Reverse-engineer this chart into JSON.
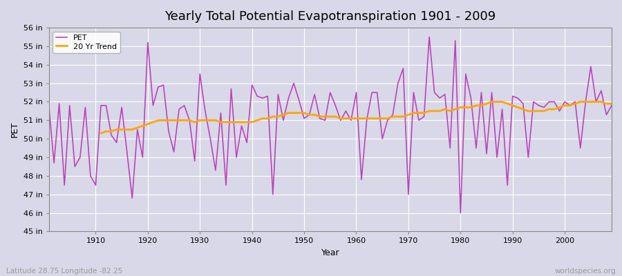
{
  "title": "Yearly Total Potential Evapotranspiration 1901 - 2009",
  "xlabel": "Year",
  "ylabel": "PET",
  "background_color": "#d8d8e8",
  "plot_bg_color": "#d8d8e8",
  "pet_color": "#bb44bb",
  "trend_color": "#ffa500",
  "years": [
    1901,
    1902,
    1903,
    1904,
    1905,
    1906,
    1907,
    1908,
    1909,
    1910,
    1911,
    1912,
    1913,
    1914,
    1915,
    1916,
    1917,
    1918,
    1919,
    1920,
    1921,
    1922,
    1923,
    1924,
    1925,
    1926,
    1927,
    1928,
    1929,
    1930,
    1931,
    1932,
    1933,
    1934,
    1935,
    1936,
    1937,
    1938,
    1939,
    1940,
    1941,
    1942,
    1943,
    1944,
    1945,
    1946,
    1947,
    1948,
    1949,
    1950,
    1951,
    1952,
    1953,
    1954,
    1955,
    1956,
    1957,
    1958,
    1959,
    1960,
    1961,
    1962,
    1963,
    1964,
    1965,
    1966,
    1967,
    1968,
    1969,
    1970,
    1971,
    1972,
    1973,
    1974,
    1975,
    1976,
    1977,
    1978,
    1979,
    1980,
    1981,
    1982,
    1983,
    1984,
    1985,
    1986,
    1987,
    1988,
    1989,
    1990,
    1991,
    1992,
    1993,
    1994,
    1995,
    1996,
    1997,
    1998,
    1999,
    2000,
    2001,
    2002,
    2003,
    2004,
    2005,
    2006,
    2007,
    2008,
    2009
  ],
  "pet_values": [
    51.8,
    48.7,
    51.9,
    47.5,
    51.8,
    48.5,
    49.0,
    51.7,
    48.0,
    47.5,
    51.8,
    51.8,
    50.2,
    49.8,
    51.7,
    49.3,
    46.8,
    50.5,
    49.0,
    55.2,
    51.8,
    52.8,
    52.9,
    50.4,
    49.3,
    51.6,
    51.8,
    51.0,
    48.8,
    53.5,
    51.5,
    50.0,
    48.3,
    51.4,
    47.5,
    52.7,
    49.0,
    50.7,
    49.8,
    52.9,
    52.3,
    52.2,
    52.3,
    47.0,
    52.4,
    51.0,
    52.2,
    53.0,
    52.1,
    51.1,
    51.3,
    52.4,
    51.1,
    51.0,
    52.5,
    51.8,
    51.0,
    51.5,
    51.0,
    52.5,
    47.8,
    51.0,
    52.5,
    52.5,
    50.0,
    51.0,
    51.3,
    53.0,
    53.8,
    47.0,
    52.5,
    51.0,
    51.2,
    55.5,
    52.5,
    52.2,
    52.4,
    49.5,
    55.3,
    46.0,
    53.5,
    52.2,
    49.5,
    52.5,
    49.2,
    52.5,
    49.0,
    51.6,
    47.5,
    52.3,
    52.2,
    51.9,
    49.0,
    52.0,
    51.8,
    51.7,
    52.0,
    52.0,
    51.5,
    52.0,
    51.8,
    52.0,
    49.5,
    52.0,
    53.9,
    52.0,
    52.6,
    51.3,
    51.8
  ],
  "trend_values": [
    null,
    null,
    null,
    null,
    null,
    null,
    null,
    null,
    null,
    null,
    50.3,
    50.4,
    50.4,
    50.5,
    50.5,
    50.5,
    50.5,
    50.6,
    50.7,
    50.8,
    50.9,
    51.0,
    51.0,
    51.0,
    51.0,
    51.0,
    51.0,
    51.0,
    50.9,
    51.0,
    51.0,
    51.0,
    51.0,
    50.9,
    50.9,
    50.9,
    50.9,
    50.9,
    50.9,
    50.9,
    51.0,
    51.1,
    51.1,
    51.2,
    51.2,
    51.3,
    51.4,
    51.4,
    51.4,
    51.4,
    51.3,
    51.3,
    51.2,
    51.2,
    51.2,
    51.2,
    51.1,
    51.1,
    51.1,
    51.1,
    51.1,
    51.1,
    51.1,
    51.1,
    51.1,
    51.1,
    51.2,
    51.2,
    51.2,
    51.3,
    51.4,
    51.4,
    51.4,
    51.5,
    51.5,
    51.5,
    51.6,
    51.5,
    51.6,
    51.7,
    51.7,
    51.7,
    51.8,
    51.8,
    51.9,
    52.0,
    52.0,
    52.0,
    51.9,
    51.8,
    51.7,
    51.6,
    51.5,
    51.5,
    51.5,
    51.5,
    51.6,
    51.6,
    51.7,
    51.8,
    51.8,
    51.9,
    52.0,
    52.0,
    52.0,
    52.0,
    52.0,
    51.9,
    51.9
  ],
  "ylim": [
    45,
    56
  ],
  "yticks": [
    45,
    46,
    47,
    48,
    49,
    50,
    51,
    52,
    53,
    54,
    55,
    56
  ],
  "ytick_labels": [
    "45 in",
    "46 in",
    "47 in",
    "48 in",
    "49 in",
    "50 in",
    "51 in",
    "52 in",
    "53 in",
    "54 in",
    "55 in",
    "56 in"
  ],
  "xticks": [
    1910,
    1920,
    1930,
    1940,
    1950,
    1960,
    1970,
    1980,
    1990,
    2000
  ],
  "footnote_left": "Latitude 28.75 Longitude -82.25",
  "footnote_right": "worldspecies.org",
  "legend_pet": "PET",
  "legend_trend": "20 Yr Trend",
  "title_fontsize": 13,
  "axis_label_fontsize": 9,
  "tick_fontsize": 8,
  "legend_fontsize": 8,
  "footnote_fontsize": 7.5,
  "linewidth_pet": 1.2,
  "linewidth_trend": 2.0
}
